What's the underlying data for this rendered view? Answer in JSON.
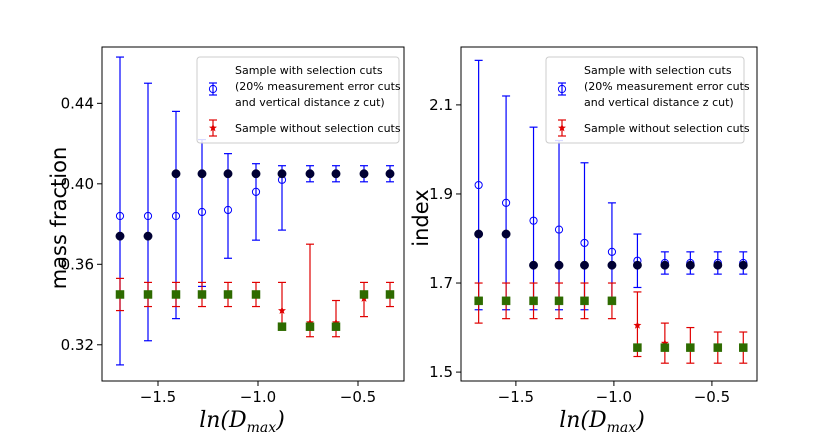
{
  "chart_data": [
    {
      "type": "scatter",
      "panel": "left",
      "xlabel": "ln(D_max)",
      "xlabel_main": "ln(D",
      "xlabel_sub": "max",
      "xlabel_close": ")",
      "ylabel": "mass fraction",
      "xlim": [
        -1.78,
        -0.27
      ],
      "ylim": [
        0.302,
        0.468
      ],
      "xticks": [
        -1.5,
        -1.0,
        -0.5
      ],
      "xtick_labels": [
        "−1.5",
        "−1.0",
        "−0.5"
      ],
      "yticks": [
        0.32,
        0.36,
        0.4,
        0.44
      ],
      "ytick_labels": [
        "0.32",
        "0.36",
        "0.40",
        "0.44"
      ],
      "legend_position": "upper-right",
      "legend": [
        {
          "name": "cuts",
          "lines": [
            "Sample with selection cuts",
            "(20% measurement error cuts",
            "and vertical distance z cut)"
          ]
        },
        {
          "name": "nocuts",
          "lines": [
            "Sample without selection cuts"
          ]
        }
      ],
      "series": [
        {
          "name": "with_cuts_open",
          "color": "#0000ff",
          "marker": "open-circle",
          "x": [
            -1.69,
            -1.55,
            -1.41,
            -1.28,
            -1.15,
            -1.01,
            -0.88,
            -0.74,
            -0.61,
            -0.47,
            -0.34
          ],
          "y": [
            0.384,
            0.384,
            0.384,
            0.386,
            0.387,
            0.396,
            0.402,
            0.405,
            0.405,
            0.405,
            0.405
          ],
          "err_low": [
            0.31,
            0.322,
            0.333,
            0.349,
            0.363,
            0.372,
            0.377,
            0.401,
            0.401,
            0.401,
            0.401
          ],
          "err_high": [
            0.463,
            0.45,
            0.436,
            0.422,
            0.415,
            0.41,
            0.409,
            0.409,
            0.409,
            0.409,
            0.409
          ]
        },
        {
          "name": "with_cuts_filled",
          "color": "#000033",
          "marker": "filled-circle",
          "x": [
            -1.69,
            -1.55,
            -1.41,
            -1.28,
            -1.15,
            -1.01,
            -0.88,
            -0.74,
            -0.61,
            -0.47,
            -0.34
          ],
          "y": [
            0.374,
            0.374,
            0.405,
            0.405,
            0.405,
            0.405,
            0.405,
            0.405,
            0.405,
            0.405,
            0.405
          ]
        },
        {
          "name": "without_cuts_star",
          "color": "#e00000",
          "marker": "star",
          "x": [
            -1.69,
            -1.55,
            -1.41,
            -1.28,
            -1.15,
            -1.01,
            -0.88,
            -0.74,
            -0.61,
            -0.47,
            -0.34
          ],
          "y": [
            0.345,
            0.345,
            0.345,
            0.345,
            0.345,
            0.345,
            0.337,
            0.331,
            0.331,
            0.343,
            0.345
          ],
          "err_low": [
            0.337,
            0.339,
            0.339,
            0.339,
            0.339,
            0.339,
            0.33,
            0.324,
            0.324,
            0.334,
            0.339
          ],
          "err_high": [
            0.353,
            0.351,
            0.351,
            0.351,
            0.351,
            0.351,
            0.351,
            0.37,
            0.342,
            0.351,
            0.351
          ]
        },
        {
          "name": "without_cuts_square",
          "color": "#2e6b00",
          "marker": "square",
          "x": [
            -1.69,
            -1.55,
            -1.41,
            -1.28,
            -1.15,
            -1.01,
            -0.88,
            -0.74,
            -0.61,
            -0.47,
            -0.34
          ],
          "y": [
            0.345,
            0.345,
            0.345,
            0.345,
            0.345,
            0.345,
            0.329,
            0.329,
            0.329,
            0.345,
            0.345
          ]
        }
      ]
    },
    {
      "type": "scatter",
      "panel": "right",
      "xlabel": "ln(D_max)",
      "xlabel_main": "ln(D",
      "xlabel_sub": "max",
      "xlabel_close": ")",
      "ylabel": "index",
      "xlim": [
        -1.78,
        -0.27
      ],
      "ylim": [
        1.48,
        2.23
      ],
      "xticks": [
        -1.5,
        -1.0,
        -0.5
      ],
      "xtick_labels": [
        "−1.5",
        "−1.0",
        "−0.5"
      ],
      "yticks": [
        1.5,
        1.7,
        1.9,
        2.1
      ],
      "ytick_labels": [
        "1.5",
        "1.7",
        "1.9",
        "2.1"
      ],
      "legend_position": "upper-right",
      "legend": [
        {
          "name": "cuts",
          "lines": [
            "Sample with selection cuts",
            "(20% measurement error cuts",
            "and vertical distance z cut)"
          ]
        },
        {
          "name": "nocuts",
          "lines": [
            "Sample without selection cuts"
          ]
        }
      ],
      "series": [
        {
          "name": "with_cuts_open",
          "color": "#0000ff",
          "marker": "open-circle",
          "x": [
            -1.69,
            -1.55,
            -1.41,
            -1.28,
            -1.15,
            -1.01,
            -0.88,
            -0.74,
            -0.61,
            -0.47,
            -0.34
          ],
          "y": [
            1.92,
            1.88,
            1.84,
            1.82,
            1.79,
            1.77,
            1.75,
            1.745,
            1.745,
            1.745,
            1.745
          ],
          "err_low": [
            1.64,
            1.64,
            1.64,
            1.64,
            1.64,
            1.66,
            1.69,
            1.72,
            1.72,
            1.72,
            1.72
          ],
          "err_high": [
            2.2,
            2.12,
            2.05,
            2.02,
            1.97,
            1.88,
            1.81,
            1.77,
            1.77,
            1.77,
            1.77
          ]
        },
        {
          "name": "with_cuts_filled",
          "color": "#000033",
          "marker": "filled-circle",
          "x": [
            -1.69,
            -1.55,
            -1.41,
            -1.28,
            -1.15,
            -1.01,
            -0.88,
            -0.74,
            -0.61,
            -0.47,
            -0.34
          ],
          "y": [
            1.81,
            1.81,
            1.74,
            1.74,
            1.74,
            1.74,
            1.74,
            1.74,
            1.74,
            1.74,
            1.74
          ]
        },
        {
          "name": "without_cuts_star",
          "color": "#e00000",
          "marker": "star",
          "x": [
            -1.69,
            -1.55,
            -1.41,
            -1.28,
            -1.15,
            -1.01,
            -0.88,
            -0.74,
            -0.61,
            -0.47,
            -0.34
          ],
          "y": [
            1.66,
            1.66,
            1.66,
            1.66,
            1.66,
            1.66,
            1.605,
            1.565,
            1.555,
            1.555,
            1.555
          ],
          "err_low": [
            1.61,
            1.62,
            1.62,
            1.62,
            1.62,
            1.62,
            1.535,
            1.52,
            1.52,
            1.52,
            1.52
          ],
          "err_high": [
            1.7,
            1.7,
            1.7,
            1.7,
            1.7,
            1.7,
            1.68,
            1.61,
            1.6,
            1.59,
            1.59
          ]
        },
        {
          "name": "without_cuts_square",
          "color": "#2e6b00",
          "marker": "square",
          "x": [
            -1.69,
            -1.55,
            -1.41,
            -1.28,
            -1.15,
            -1.01,
            -0.88,
            -0.74,
            -0.61,
            -0.47,
            -0.34
          ],
          "y": [
            1.66,
            1.66,
            1.66,
            1.66,
            1.66,
            1.66,
            1.555,
            1.555,
            1.555,
            1.555,
            1.555
          ]
        }
      ]
    }
  ]
}
